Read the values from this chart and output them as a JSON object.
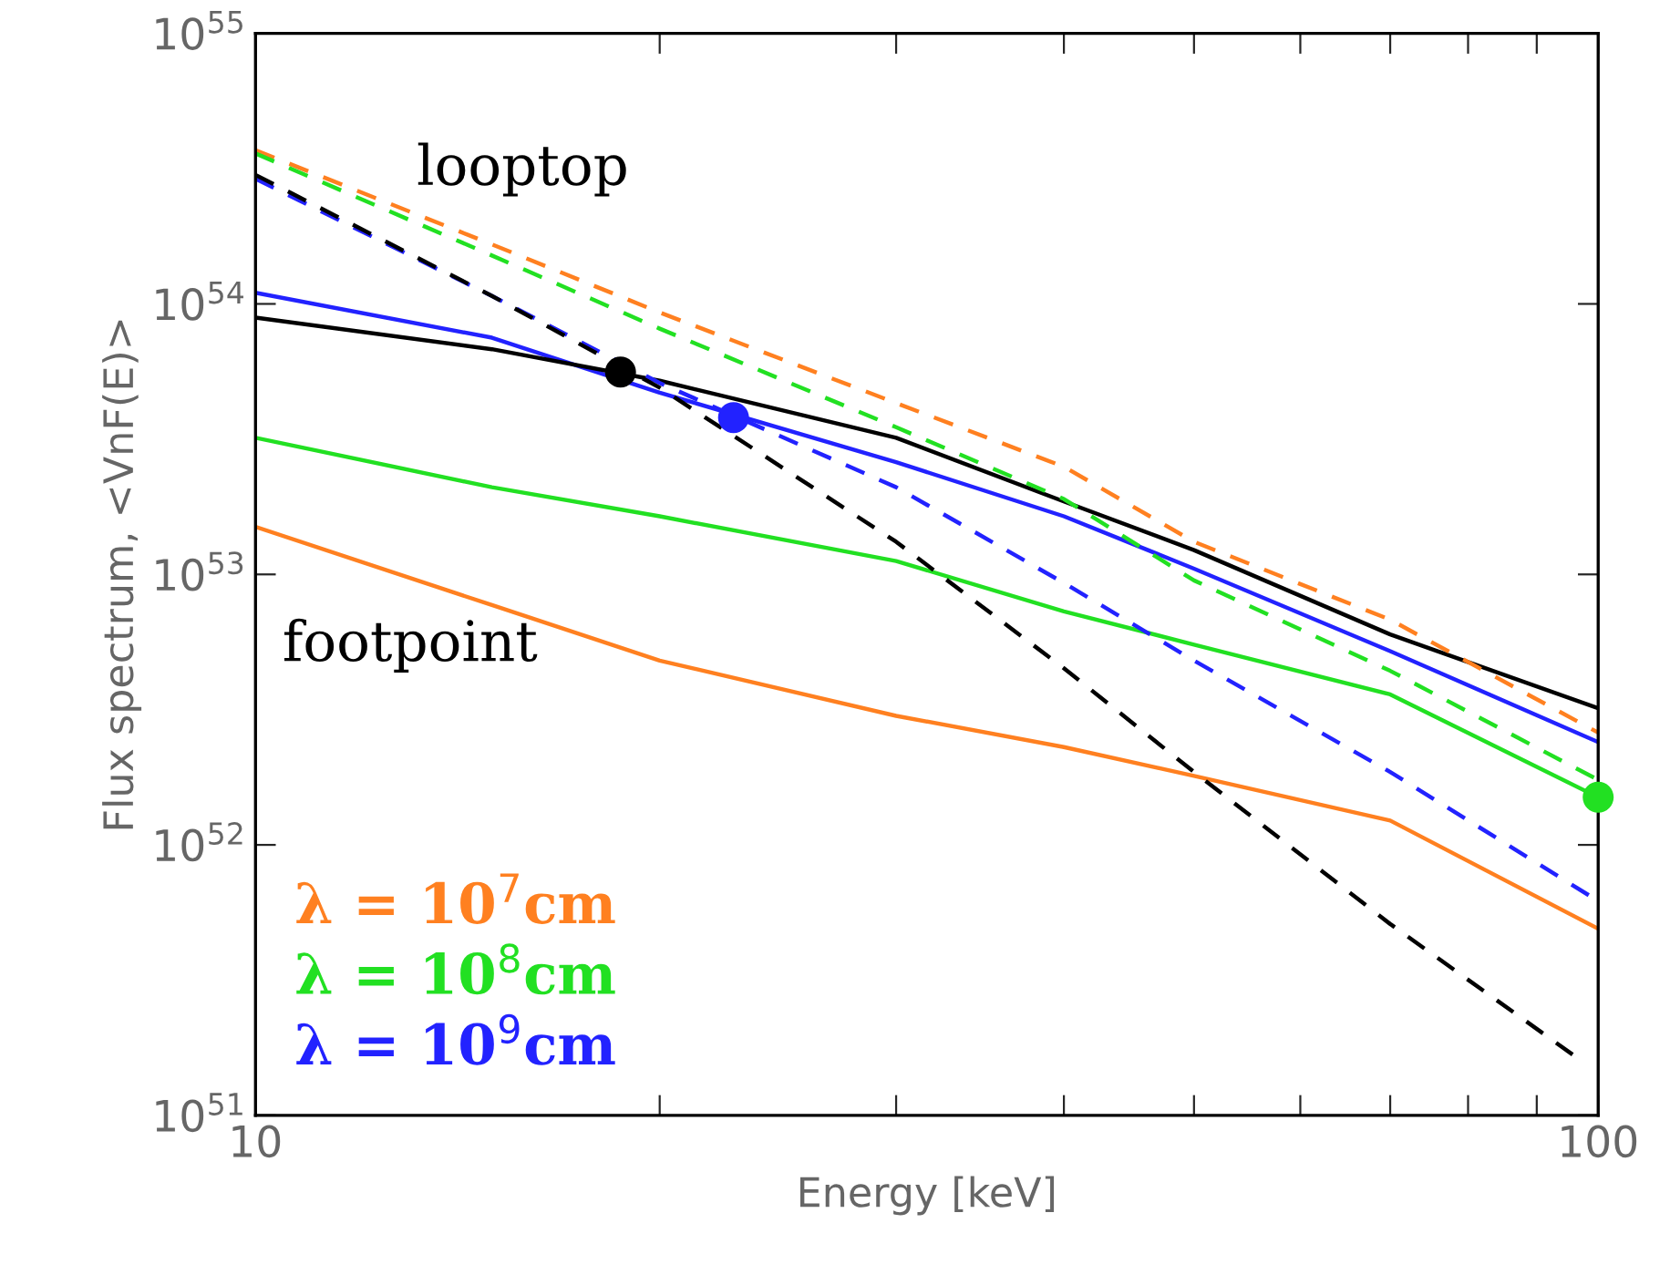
{
  "chart_data": {
    "type": "line",
    "xlabel": "Energy [keV]",
    "ylabel": "Flux spectrum, <VnF(E)>",
    "log": "xy",
    "xlim": [
      10,
      100
    ],
    "ylim": [
      1e+51,
      1e+55
    ],
    "xticks": [
      10,
      {
        "value": 20,
        "label": null
      },
      {
        "value": 30,
        "label": null
      },
      {
        "value": 40,
        "label": null
      },
      {
        "value": 50,
        "label": null
      },
      {
        "value": 60,
        "label": null
      },
      {
        "value": 70,
        "label": null
      },
      {
        "value": 80,
        "label": null
      },
      {
        "value": 90,
        "label": null
      },
      100
    ],
    "yticks": [
      {
        "value": 1e+51,
        "label": "10$^{51}$"
      },
      {
        "value": 1e+52,
        "label": "10$^{52}$"
      },
      {
        "value": 1e+53,
        "label": "10$^{53}$"
      },
      {
        "value": 1e+54,
        "label": "10$^{54}$"
      },
      {
        "value": 1e+55,
        "label": "10$^{55}$"
      }
    ],
    "grid": false,
    "legend": "bottom left",
    "marker": "none",
    "annotations": [
      "looptop",
      "footpoint"
    ],
    "series": [
      {
        "name": "λ = 10$^{7}$cm",
        "color": "#ff8020",
        "line_style": "solid",
        "x": [
          10,
          15,
          20,
          30,
          40,
          50,
          70,
          100
        ],
        "values": [
          1.5e+53,
          7.7e+52,
          4.8e+52,
          3e+52,
          2.3e+52,
          1.8e+52,
          1.23e+52,
          4.9e+51
        ]
      },
      {
        "name": "λ = 10$^{8}$cm",
        "color": "#22e022",
        "line_style": "solid",
        "x": [
          10,
          15,
          20,
          30,
          40,
          50,
          70,
          100
        ],
        "values": [
          3.2e+53,
          2.1e+53,
          1.64e+53,
          1.12e+53,
          7.3e+52,
          5.5e+52,
          3.6e+52,
          1.5e+52
        ]
      },
      {
        "name": "λ = 10$^{9}$cm",
        "color": "#2222ff",
        "line_style": "solid",
        "x": [
          10,
          15,
          20,
          30,
          40,
          50,
          70,
          100
        ],
        "values": [
          1.1e+54,
          7.5e+53,
          4.7e+53,
          2.6e+53,
          1.64e+53,
          1.05e+53,
          5.2e+52,
          2.4e+52
        ]
      },
      {
        "color": "#000000",
        "line_style": "solid",
        "x": [
          10,
          15,
          20,
          30,
          40,
          50,
          70,
          100
        ],
        "values": [
          8.9e+53,
          6.8e+53,
          5.2e+53,
          3.2e+53,
          1.86e+53,
          1.23e+53,
          6e+52,
          3.2e+52
        ]
      },
      {
        "color": "#ff8020",
        "line_style": "dashed",
        "x": [
          10,
          15,
          20,
          30,
          40,
          50,
          70,
          100
        ],
        "values": [
          3.7e+54,
          1.66e+54,
          9.3e+53,
          4.3e+53,
          2.5e+53,
          1.32e+53,
          6.8e+52,
          2.6e+52
        ]
      },
      {
        "color": "#22e022",
        "line_style": "dashed",
        "x": [
          10,
          15,
          20,
          30,
          40,
          50,
          70,
          100
        ],
        "values": [
          3.6e+54,
          1.51e+54,
          8.1e+53,
          3.5e+53,
          1.9e+53,
          9.5e+52,
          4.4e+52,
          1.74e+52
        ]
      },
      {
        "color": "#2222ff",
        "line_style": "dashed",
        "x": [
          10,
          15,
          20,
          30,
          40,
          50,
          70,
          100
        ],
        "values": [
          2.9e+54,
          1.07e+54,
          5.1e+53,
          2.1e+53,
          9.3e+52,
          4.8e+52,
          1.86e+52,
          6.2e+51
        ]
      },
      {
        "color": "#000000",
        "line_style": "dashed",
        "x": [
          10,
          15,
          20,
          30,
          40,
          50,
          70,
          97
        ],
        "values": [
          3e+54,
          1.07e+54,
          4.9e+53,
          1.32e+53,
          4.5e+52,
          1.86e+52,
          5.1e+51,
          1.6e+51
        ]
      },
      {
        "type": "scatter",
        "marker": "circle",
        "color": "#000000",
        "x": [
          18.7
        ],
        "values": [
          5.6e+53
        ]
      },
      {
        "type": "scatter",
        "marker": "circle",
        "color": "#2222ff",
        "x": [
          22.7
        ],
        "values": [
          3.8e+53
        ]
      },
      {
        "type": "scatter",
        "marker": "circle",
        "color": "#22e022",
        "x": [
          100
        ],
        "values": [
          1.5e+52
        ]
      }
    ]
  }
}
